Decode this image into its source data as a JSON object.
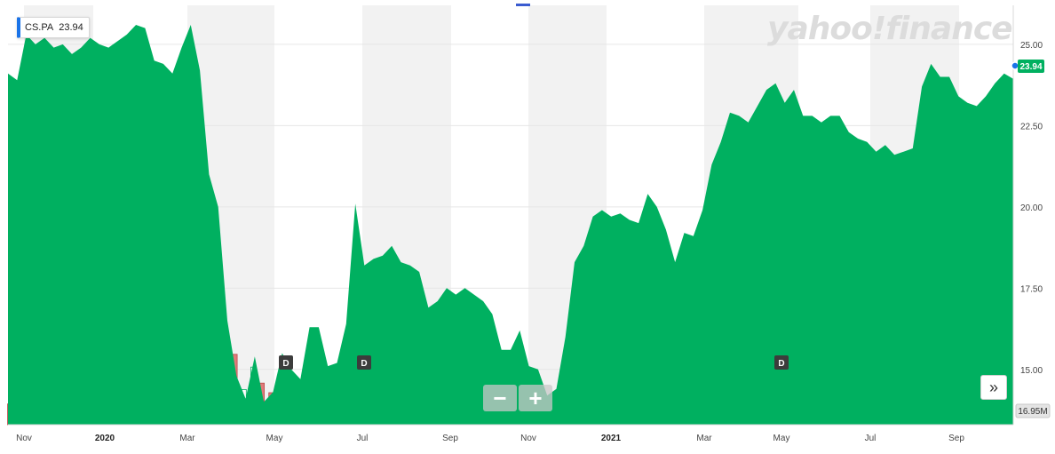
{
  "ticker": {
    "symbol": "CS.PA",
    "value": "23.94"
  },
  "watermark": "yahoo!finance",
  "controls": {
    "zoom_out": "−",
    "zoom_in": "+",
    "expand": "»"
  },
  "colors": {
    "area": "#00b060",
    "vol_up": "#ffffff",
    "vol_down": "#e07a7a",
    "vol_up_stroke": "#00b060",
    "vol_down_stroke": "#b94a4a",
    "shade": "#f2f2f2",
    "last_badge": "#00b060",
    "accent": "#1a73e8"
  },
  "chart_data": {
    "type": "area",
    "x_tick_labels": [
      "Nov",
      "2020",
      "Mar",
      "May",
      "Jul",
      "Sep",
      "Nov",
      "2021",
      "Mar",
      "May",
      "Jul",
      "Sep"
    ],
    "year_labels": [
      "2020",
      "2021"
    ],
    "y_ticks": [
      "25.00",
      "22.50",
      "20.00",
      "17.50",
      "15.00"
    ],
    "ylim": [
      13.3,
      26.2
    ],
    "last_value_label": "23.94",
    "volume_label": "16.95M",
    "dividend_markers": [
      "D",
      "D",
      "D"
    ],
    "price_series": [
      24.1,
      23.9,
      25.3,
      25.0,
      25.2,
      24.9,
      25.0,
      24.7,
      24.9,
      25.2,
      25.0,
      24.9,
      25.1,
      25.3,
      25.6,
      25.5,
      24.5,
      24.4,
      24.1,
      24.9,
      25.6,
      24.2,
      21.0,
      20.0,
      16.5,
      14.8,
      14.1,
      15.4,
      14.0,
      14.3,
      15.5,
      15.0,
      14.7,
      16.3,
      16.3,
      15.1,
      15.2,
      16.4,
      20.1,
      18.2,
      18.4,
      18.5,
      18.8,
      18.3,
      18.2,
      18.0,
      16.9,
      17.1,
      17.5,
      17.3,
      17.5,
      17.3,
      17.1,
      16.7,
      15.6,
      15.6,
      16.2,
      15.1,
      15.0,
      14.2,
      14.4,
      16.0,
      18.3,
      18.8,
      19.7,
      19.9,
      19.7,
      19.8,
      19.6,
      19.5,
      20.4,
      20.0,
      19.3,
      18.3,
      19.2,
      19.1,
      19.9,
      21.3,
      22.0,
      22.9,
      22.8,
      22.6,
      23.1,
      23.6,
      23.8,
      23.2,
      23.6,
      22.8,
      22.8,
      22.6,
      22.8,
      22.8,
      22.3,
      22.1,
      22.0,
      21.7,
      21.9,
      21.6,
      21.7,
      21.8,
      23.7,
      24.4,
      24.0,
      24.0,
      23.4,
      23.2,
      23.1,
      23.4,
      23.8,
      24.1,
      23.94
    ],
    "volume_series": [
      0.65,
      1.0,
      0.72,
      0.65,
      0.68,
      0.6,
      0.72,
      0.65,
      0.78,
      0.68,
      0.95,
      0.28,
      0.72,
      0.68,
      0.83,
      0.72,
      0.78,
      0.83,
      0.62,
      0.68,
      1.1,
      2.3,
      2.3,
      3.0,
      2.6,
      2.2,
      1.1,
      1.8,
      1.3,
      1.0,
      0.95,
      0.9,
      0.95,
      0.9,
      0.88,
      0.8,
      0.78,
      0.88,
      1.25,
      1.35,
      1.25,
      1.2,
      0.88,
      0.95,
      0.88,
      0.72,
      0.82,
      0.72,
      0.78,
      0.72,
      0.68,
      0.72,
      0.78,
      0.85,
      0.9,
      1.0,
      0.88,
      0.65,
      0.6,
      0.62,
      0.72,
      0.8,
      1.05,
      1.0,
      0.9,
      0.78,
      0.82,
      0.75,
      0.7,
      0.55,
      0.65,
      0.72,
      0.78,
      0.6,
      0.62,
      0.72,
      0.68,
      0.82,
      0.9,
      0.8,
      0.72,
      0.75,
      0.78,
      0.68,
      0.68,
      0.72,
      0.78,
      0.82,
      0.9,
      0.8,
      0.68,
      0.72,
      0.6,
      0.72,
      0.82,
      0.72,
      0.72,
      0.65,
      0.6,
      0.68,
      0.72,
      0.8,
      0.88,
      0.62,
      0.6,
      0.62,
      0.55,
      0.68,
      0.75,
      0.72,
      0.6
    ],
    "volume_down_flags": [
      1,
      0,
      1,
      1,
      1,
      1,
      0,
      1,
      0,
      1,
      0,
      1,
      0,
      1,
      1,
      0,
      1,
      0,
      0,
      1,
      1,
      1,
      1,
      1,
      1,
      1,
      0,
      0,
      1,
      1,
      0,
      1,
      0,
      1,
      0,
      1,
      0,
      0,
      0,
      0,
      1,
      1,
      0,
      1,
      0,
      1,
      1,
      0,
      1,
      0,
      1,
      1,
      0,
      1,
      1,
      0,
      0,
      1,
      1,
      1,
      1,
      0,
      0,
      0,
      1,
      0,
      1,
      0,
      1,
      1,
      0,
      0,
      1,
      1,
      0,
      1,
      0,
      0,
      0,
      1,
      0,
      0,
      1,
      1,
      0,
      1,
      0,
      1,
      0,
      1,
      1,
      1,
      1,
      1,
      1,
      1,
      1,
      0,
      1,
      0,
      0,
      1,
      0,
      1,
      1,
      0,
      1,
      0,
      0,
      0,
      0
    ]
  }
}
